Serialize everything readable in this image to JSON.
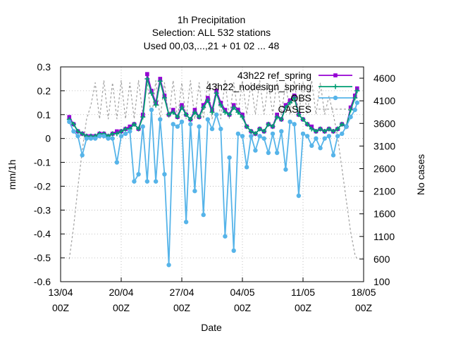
{
  "chart_data": {
    "type": "line",
    "title_lines": [
      "1h Precipitation",
      "Selection: ALL     532 stations",
      "Used  00,03,...,21  + 01 02 ... 48"
    ],
    "xlabel": "Date",
    "ylabel": "mm/1h",
    "y2label": "No cases",
    "x_range": [
      "2023-04-13T00:00",
      "2023-05-18T00:00"
    ],
    "x_ticks": [
      {
        "date": "2023-04-13T00:00",
        "line1": "13/04",
        "line2": "00Z"
      },
      {
        "date": "2023-04-20T00:00",
        "line1": "20/04",
        "line2": "00Z"
      },
      {
        "date": "2023-04-27T00:00",
        "line1": "27/04",
        "line2": "00Z"
      },
      {
        "date": "2023-05-04T00:00",
        "line1": "04/05",
        "line2": "00Z"
      },
      {
        "date": "2023-05-11T00:00",
        "line1": "11/05",
        "line2": "00Z"
      },
      {
        "date": "2023-05-18T00:00",
        "line1": "18/05",
        "line2": "00Z"
      }
    ],
    "ylim": [
      -0.6,
      0.3
    ],
    "y_ticks": [
      "-0.6",
      "-0.5",
      "-0.4",
      "-0.3",
      "-0.2",
      "-0.1",
      "0",
      "0.1",
      "0.2",
      "0.3"
    ],
    "y2lim": [
      100,
      4850
    ],
    "y2_ticks": [
      "100",
      "600",
      "1100",
      "1600",
      "2100",
      "2600",
      "3100",
      "3600",
      "4100",
      "4600"
    ],
    "grid": true,
    "legend_position": "top-right",
    "series": [
      {
        "name": "43h22 ref_spring",
        "color": "#9400d3",
        "marker": "square",
        "x": [
          "2023-04-14T00:00",
          "2023-04-14T12:00",
          "2023-04-15T00:00",
          "2023-04-15T12:00",
          "2023-04-16T00:00",
          "2023-04-16T12:00",
          "2023-04-17T00:00",
          "2023-04-17T12:00",
          "2023-04-18T00:00",
          "2023-04-18T12:00",
          "2023-04-19T00:00",
          "2023-04-19T12:00",
          "2023-04-20T00:00",
          "2023-04-20T12:00",
          "2023-04-21T00:00",
          "2023-04-21T12:00",
          "2023-04-22T00:00",
          "2023-04-22T12:00",
          "2023-04-23T00:00",
          "2023-04-23T12:00",
          "2023-04-24T00:00",
          "2023-04-24T12:00",
          "2023-04-25T00:00",
          "2023-04-25T12:00",
          "2023-04-26T00:00",
          "2023-04-26T12:00",
          "2023-04-27T00:00",
          "2023-04-27T12:00",
          "2023-04-28T00:00",
          "2023-04-28T12:00",
          "2023-04-29T00:00",
          "2023-04-29T12:00",
          "2023-04-30T00:00",
          "2023-04-30T12:00",
          "2023-05-01T00:00",
          "2023-05-01T12:00",
          "2023-05-02T00:00",
          "2023-05-02T12:00",
          "2023-05-03T00:00",
          "2023-05-03T12:00",
          "2023-05-04T00:00",
          "2023-05-04T12:00",
          "2023-05-05T00:00",
          "2023-05-05T12:00",
          "2023-05-06T00:00",
          "2023-05-06T12:00",
          "2023-05-07T00:00",
          "2023-05-07T12:00",
          "2023-05-08T00:00",
          "2023-05-08T12:00",
          "2023-05-09T00:00",
          "2023-05-09T12:00",
          "2023-05-10T00:00",
          "2023-05-10T12:00",
          "2023-05-11T00:00",
          "2023-05-11T12:00",
          "2023-05-12T00:00",
          "2023-05-12T12:00",
          "2023-05-13T00:00",
          "2023-05-13T12:00",
          "2023-05-14T00:00",
          "2023-05-14T12:00",
          "2023-05-15T00:00",
          "2023-05-15T12:00",
          "2023-05-16T00:00",
          "2023-05-16T12:00",
          "2023-05-17T00:00",
          "2023-05-17T06:00"
        ],
        "y": [
          0.09,
          0.06,
          0.03,
          0.02,
          0.01,
          0.01,
          0.01,
          0.02,
          0.02,
          0.01,
          0.02,
          0.03,
          0.03,
          0.04,
          0.05,
          0.06,
          0.04,
          0.1,
          0.27,
          0.2,
          0.15,
          0.25,
          0.18,
          0.1,
          0.12,
          0.09,
          0.14,
          0.1,
          0.08,
          0.12,
          0.09,
          0.14,
          0.17,
          0.12,
          0.2,
          0.15,
          0.12,
          0.1,
          0.14,
          0.12,
          0.1,
          0.05,
          0.03,
          0.02,
          0.04,
          0.03,
          0.06,
          0.05,
          0.1,
          0.08,
          0.14,
          0.16,
          0.18,
          0.1,
          0.08,
          0.06,
          0.05,
          0.03,
          0.04,
          0.03,
          0.04,
          0.03,
          0.04,
          0.06,
          0.05,
          0.13,
          0.18,
          0.21
        ]
      },
      {
        "name": "43h22_nodesign_spring",
        "color": "#009e73",
        "marker": "plus",
        "x": [
          "2023-04-14T00:00",
          "2023-04-14T12:00",
          "2023-04-15T00:00",
          "2023-04-15T12:00",
          "2023-04-16T00:00",
          "2023-04-16T12:00",
          "2023-04-17T00:00",
          "2023-04-17T12:00",
          "2023-04-18T00:00",
          "2023-04-18T12:00",
          "2023-04-19T00:00",
          "2023-04-19T12:00",
          "2023-04-20T00:00",
          "2023-04-20T12:00",
          "2023-04-21T00:00",
          "2023-04-21T12:00",
          "2023-04-22T00:00",
          "2023-04-22T12:00",
          "2023-04-23T00:00",
          "2023-04-23T12:00",
          "2023-04-24T00:00",
          "2023-04-24T12:00",
          "2023-04-25T00:00",
          "2023-04-25T12:00",
          "2023-04-26T00:00",
          "2023-04-26T12:00",
          "2023-04-27T00:00",
          "2023-04-27T12:00",
          "2023-04-28T00:00",
          "2023-04-28T12:00",
          "2023-04-29T00:00",
          "2023-04-29T12:00",
          "2023-04-30T00:00",
          "2023-04-30T12:00",
          "2023-05-01T00:00",
          "2023-05-01T12:00",
          "2023-05-02T00:00",
          "2023-05-02T12:00",
          "2023-05-03T00:00",
          "2023-05-03T12:00",
          "2023-05-04T00:00",
          "2023-05-04T12:00",
          "2023-05-05T00:00",
          "2023-05-05T12:00",
          "2023-05-06T00:00",
          "2023-05-06T12:00",
          "2023-05-07T00:00",
          "2023-05-07T12:00",
          "2023-05-08T00:00",
          "2023-05-08T12:00",
          "2023-05-09T00:00",
          "2023-05-09T12:00",
          "2023-05-10T00:00",
          "2023-05-10T12:00",
          "2023-05-11T00:00",
          "2023-05-11T12:00",
          "2023-05-12T00:00",
          "2023-05-12T12:00",
          "2023-05-13T00:00",
          "2023-05-13T12:00",
          "2023-05-14T00:00",
          "2023-05-14T12:00",
          "2023-05-15T00:00",
          "2023-05-15T12:00",
          "2023-05-16T00:00",
          "2023-05-16T12:00",
          "2023-05-17T00:00",
          "2023-05-17T06:00"
        ],
        "y": [
          0.08,
          0.06,
          0.03,
          0.02,
          0.01,
          0.01,
          0.01,
          0.02,
          0.02,
          0.01,
          0.02,
          0.02,
          0.03,
          0.04,
          0.04,
          0.06,
          0.04,
          0.09,
          0.25,
          0.19,
          0.14,
          0.24,
          0.17,
          0.1,
          0.11,
          0.09,
          0.13,
          0.1,
          0.08,
          0.11,
          0.09,
          0.13,
          0.16,
          0.11,
          0.19,
          0.14,
          0.11,
          0.1,
          0.13,
          0.11,
          0.09,
          0.05,
          0.03,
          0.02,
          0.04,
          0.03,
          0.06,
          0.05,
          0.09,
          0.08,
          0.13,
          0.15,
          0.17,
          0.1,
          0.08,
          0.06,
          0.04,
          0.03,
          0.04,
          0.03,
          0.04,
          0.03,
          0.04,
          0.06,
          0.05,
          0.12,
          0.17,
          0.2
        ]
      },
      {
        "name": "OBS",
        "color": "#56b4e9",
        "marker": "circle",
        "x": [
          "2023-04-14T00:00",
          "2023-04-14T12:00",
          "2023-04-15T00:00",
          "2023-04-15T12:00",
          "2023-04-16T00:00",
          "2023-04-16T12:00",
          "2023-04-17T00:00",
          "2023-04-17T12:00",
          "2023-04-18T00:00",
          "2023-04-18T12:00",
          "2023-04-19T00:00",
          "2023-04-19T12:00",
          "2023-04-20T00:00",
          "2023-04-20T12:00",
          "2023-04-21T00:00",
          "2023-04-21T12:00",
          "2023-04-22T00:00",
          "2023-04-22T12:00",
          "2023-04-23T00:00",
          "2023-04-23T12:00",
          "2023-04-24T00:00",
          "2023-04-24T12:00",
          "2023-04-25T00:00",
          "2023-04-25T12:00",
          "2023-04-26T00:00",
          "2023-04-26T12:00",
          "2023-04-27T00:00",
          "2023-04-27T12:00",
          "2023-04-28T00:00",
          "2023-04-28T12:00",
          "2023-04-29T00:00",
          "2023-04-29T12:00",
          "2023-04-30T00:00",
          "2023-04-30T12:00",
          "2023-05-01T00:00",
          "2023-05-01T12:00",
          "2023-05-02T00:00",
          "2023-05-02T12:00",
          "2023-05-03T00:00",
          "2023-05-03T12:00",
          "2023-05-04T00:00",
          "2023-05-04T12:00",
          "2023-05-05T00:00",
          "2023-05-05T12:00",
          "2023-05-06T00:00",
          "2023-05-06T12:00",
          "2023-05-07T00:00",
          "2023-05-07T12:00",
          "2023-05-08T00:00",
          "2023-05-08T12:00",
          "2023-05-09T00:00",
          "2023-05-09T12:00",
          "2023-05-10T00:00",
          "2023-05-10T12:00",
          "2023-05-11T00:00",
          "2023-05-11T12:00",
          "2023-05-12T00:00",
          "2023-05-12T12:00",
          "2023-05-13T00:00",
          "2023-05-13T12:00",
          "2023-05-14T00:00",
          "2023-05-14T12:00",
          "2023-05-15T00:00",
          "2023-05-15T12:00",
          "2023-05-16T00:00",
          "2023-05-16T12:00",
          "2023-05-17T00:00",
          "2023-05-17T06:00"
        ],
        "y": [
          0.07,
          0.03,
          0.01,
          -0.07,
          0.0,
          0.0,
          0.0,
          0.01,
          0.01,
          0.0,
          0.0,
          -0.1,
          0.01,
          0.02,
          0.03,
          -0.18,
          -0.15,
          0.05,
          -0.18,
          0.12,
          -0.18,
          0.08,
          -0.15,
          -0.53,
          0.06,
          0.05,
          0.07,
          -0.35,
          0.06,
          -0.22,
          0.05,
          -0.32,
          0.08,
          0.04,
          0.1,
          0.04,
          -0.41,
          -0.08,
          -0.47,
          0.02,
          0.01,
          -0.12,
          0.01,
          -0.05,
          0.01,
          0.0,
          -0.06,
          0.02,
          -0.06,
          0.03,
          -0.13,
          0.07,
          0.06,
          -0.24,
          0.02,
          0.01,
          -0.03,
          0.0,
          -0.04,
          0.0,
          0.01,
          -0.07,
          0.01,
          0.02,
          0.05,
          0.09,
          0.12,
          0.15
        ]
      },
      {
        "name": "CASES",
        "color": "#a0a0a0",
        "marker": "none",
        "dashed": true,
        "axis": "y2",
        "x": [
          "2023-04-14T00:00",
          "2023-04-14T12:00",
          "2023-04-15T00:00",
          "2023-04-15T12:00",
          "2023-04-16T00:00",
          "2023-04-16T12:00",
          "2023-04-17T00:00",
          "2023-04-17T12:00",
          "2023-04-18T00:00",
          "2023-04-18T12:00",
          "2023-04-19T00:00",
          "2023-04-19T12:00",
          "2023-04-20T00:00",
          "2023-04-20T12:00",
          "2023-04-21T00:00",
          "2023-04-21T12:00",
          "2023-04-22T00:00",
          "2023-04-22T12:00",
          "2023-04-23T00:00",
          "2023-04-23T12:00",
          "2023-04-24T00:00",
          "2023-04-24T12:00",
          "2023-04-25T00:00",
          "2023-04-25T12:00",
          "2023-04-26T00:00",
          "2023-04-26T12:00",
          "2023-04-27T00:00",
          "2023-04-27T12:00",
          "2023-04-28T00:00",
          "2023-04-28T12:00",
          "2023-04-29T00:00",
          "2023-04-29T12:00",
          "2023-04-30T00:00",
          "2023-04-30T12:00",
          "2023-05-01T00:00",
          "2023-05-01T12:00",
          "2023-05-02T00:00",
          "2023-05-02T12:00",
          "2023-05-03T00:00",
          "2023-05-03T12:00",
          "2023-05-04T00:00",
          "2023-05-04T12:00",
          "2023-05-05T00:00",
          "2023-05-05T12:00",
          "2023-05-06T00:00",
          "2023-05-06T12:00",
          "2023-05-07T00:00",
          "2023-05-07T12:00",
          "2023-05-08T00:00",
          "2023-05-08T12:00",
          "2023-05-09T00:00",
          "2023-05-09T12:00",
          "2023-05-10T00:00",
          "2023-05-10T12:00",
          "2023-05-11T00:00",
          "2023-05-11T12:00",
          "2023-05-12T00:00",
          "2023-05-12T12:00",
          "2023-05-13T00:00",
          "2023-05-13T12:00",
          "2023-05-14T00:00",
          "2023-05-14T12:00",
          "2023-05-15T00:00",
          "2023-05-15T12:00",
          "2023-05-16T00:00",
          "2023-05-16T12:00",
          "2023-05-17T00:00",
          "2023-05-17T06:00"
        ],
        "y": [
          600,
          1300,
          2200,
          3000,
          3700,
          4000,
          4500,
          3700,
          4550,
          3700,
          4500,
          3700,
          4550,
          3700,
          4500,
          3700,
          4550,
          3800,
          4500,
          3700,
          4550,
          3700,
          4500,
          3700,
          4550,
          3700,
          4500,
          3700,
          4550,
          3700,
          4500,
          3700,
          4550,
          3700,
          4500,
          3700,
          4550,
          3700,
          4500,
          3800,
          4550,
          3800,
          4500,
          3800,
          4550,
          3800,
          4500,
          3800,
          4550,
          3800,
          4500,
          3800,
          4550,
          3800,
          4500,
          3800,
          4550,
          3800,
          4500,
          3800,
          4200,
          3800,
          3300,
          2600,
          1900,
          1200,
          700,
          600
        ]
      }
    ],
    "legend_entries": [
      {
        "label": "43h22 ref_spring",
        "color": "#9400d3",
        "marker": "square"
      },
      {
        "label": "43h22_nodesign_spring",
        "color": "#009e73",
        "marker": "plus"
      },
      {
        "label": "OBS",
        "color": "#56b4e9",
        "marker": "circle"
      },
      {
        "label": "CASES",
        "color": "#a0a0a0",
        "marker": "none",
        "dashed": true
      }
    ]
  }
}
